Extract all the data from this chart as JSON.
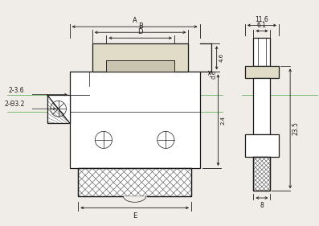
{
  "bg_color": "#f0ede8",
  "line_color": "#1a1a1a",
  "dim_color": "#1a1a1a",
  "green_line_color": "#4aaa44",
  "figsize": [
    3.97,
    2.81
  ],
  "dpi": 100,
  "labels": {
    "A": "A",
    "B": "B",
    "D": "D",
    "E": "E",
    "dim_46": "4.6",
    "dim_06": "0.6",
    "dim_24": "2.4",
    "dim_116": "11.6",
    "dim_61": "6.1",
    "dim_235": "23.5",
    "dim_8": "8",
    "label_2_36": "2-3.6",
    "label_2_phi32": "2-Θ3.2"
  }
}
